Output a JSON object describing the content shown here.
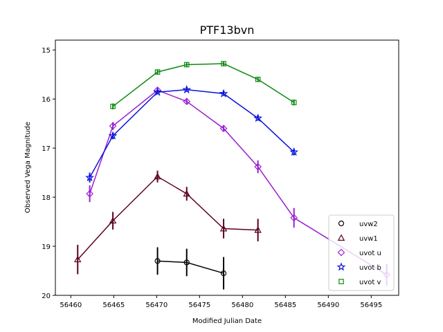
{
  "chart_data": {
    "type": "scatter",
    "title": "PTF13bvn",
    "xlabel": "Modified Julian Date",
    "ylabel": "Observed Vega Magnitude",
    "xlim": [
      56458.2,
      56498.2
    ],
    "ylim": [
      20,
      14.8
    ],
    "y_inverted": true,
    "x_ticks": [
      56460,
      56465,
      56470,
      56475,
      56480,
      56485,
      56490,
      56495
    ],
    "y_ticks": [
      15,
      16,
      17,
      18,
      19,
      20
    ],
    "grid": false,
    "legend_position": "lower-right",
    "series": [
      {
        "name": "uvw2",
        "color": "#000000",
        "marker": "circle",
        "x": [
          56470.1,
          56473.5,
          56477.8
        ],
        "y": [
          19.3,
          19.33,
          19.55
        ],
        "err": [
          0.28,
          0.28,
          0.33
        ]
      },
      {
        "name": "uvw1",
        "color": "#5c0020",
        "marker": "triangle",
        "x": [
          56460.8,
          56464.9,
          56470.1,
          56473.5,
          56477.8,
          56481.8
        ],
        "y": [
          19.27,
          18.48,
          17.58,
          17.93,
          18.64,
          18.67
        ],
        "err": [
          0.3,
          0.18,
          0.12,
          0.14,
          0.2,
          0.23
        ]
      },
      {
        "name": "uvot u",
        "color": "#9a1fd0",
        "marker": "diamond",
        "x": [
          56462.2,
          56464.9,
          56470.1,
          56473.5,
          56477.8,
          56481.8,
          56486.0,
          56496.8
        ],
        "y": [
          17.93,
          16.55,
          15.82,
          16.05,
          16.6,
          17.38,
          18.42,
          19.58
        ],
        "err": [
          0.17,
          0.08,
          0.05,
          0.05,
          0.05,
          0.13,
          0.2,
          0.22
        ]
      },
      {
        "name": "uvot b",
        "color": "#0a12dc",
        "marker": "star",
        "x": [
          56462.2,
          56464.9,
          56470.1,
          56473.5,
          56477.8,
          56481.8,
          56486.0
        ],
        "y": [
          17.6,
          16.75,
          15.86,
          15.81,
          15.89,
          16.39,
          17.08
        ],
        "err": [
          0.1,
          0.07,
          0.04,
          0.04,
          0.04,
          0.05,
          0.07
        ]
      },
      {
        "name": "uvot v",
        "color": "#0d8a12",
        "marker": "square",
        "x": [
          56464.9,
          56470.1,
          56473.5,
          56477.8,
          56481.8,
          56486.0
        ],
        "y": [
          16.15,
          15.45,
          15.3,
          15.28,
          15.6,
          16.07
        ],
        "err": [
          0.06,
          0.05,
          0.04,
          0.04,
          0.05,
          0.06
        ]
      }
    ]
  }
}
